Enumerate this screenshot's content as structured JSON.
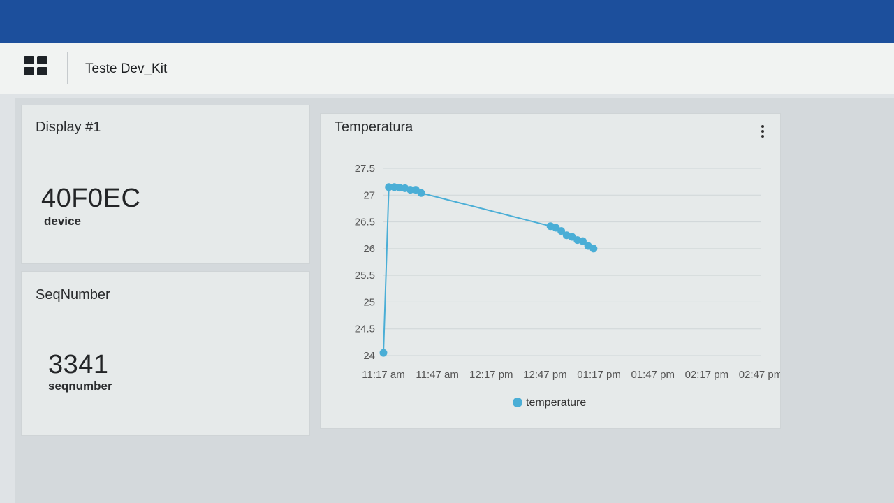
{
  "header": {
    "title": "Teste Dev_Kit"
  },
  "tiles": [
    {
      "title": "Display #1",
      "value": "40F0EC",
      "label": "device"
    },
    {
      "title": "SeqNumber",
      "value": "3341",
      "label": "seqnumber"
    }
  ],
  "chart_panel": {
    "title": "Temperatura"
  },
  "chart_data": {
    "type": "line",
    "title": "Temperatura",
    "y_ticks": [
      "27.5",
      "27",
      "26.5",
      "26",
      "25.5",
      "25",
      "24.5",
      "24"
    ],
    "ylim": [
      24,
      27.5
    ],
    "x_tick_labels": [
      "11:17 am",
      "11:47 am",
      "12:17 pm",
      "12:47 pm",
      "01:17 pm",
      "01:47 pm",
      "02:17 pm",
      "02:47 pm"
    ],
    "series": [
      {
        "name": "temperature",
        "color": "#4aaed6",
        "points": [
          {
            "x": "11:17 am",
            "y": 24.05
          },
          {
            "x": "11:20 am",
            "y": 27.15
          },
          {
            "x": "11:23 am",
            "y": 27.15
          },
          {
            "x": "11:26 am",
            "y": 27.14
          },
          {
            "x": "11:29 am",
            "y": 27.13
          },
          {
            "x": "11:32 am",
            "y": 27.1
          },
          {
            "x": "11:35 am",
            "y": 27.1
          },
          {
            "x": "11:38 am",
            "y": 27.04
          },
          {
            "x": "12:50 pm",
            "y": 26.42
          },
          {
            "x": "12:53 pm",
            "y": 26.39
          },
          {
            "x": "12:56 pm",
            "y": 26.33
          },
          {
            "x": "12:59 pm",
            "y": 26.25
          },
          {
            "x": "01:02 pm",
            "y": 26.22
          },
          {
            "x": "01:05 pm",
            "y": 26.16
          },
          {
            "x": "01:08 pm",
            "y": 26.14
          },
          {
            "x": "01:11 pm",
            "y": 26.05
          },
          {
            "x": "01:14 pm",
            "y": 26.0
          }
        ]
      }
    ],
    "legend": {
      "label": "temperature",
      "position": "bottom"
    },
    "grid": true
  }
}
